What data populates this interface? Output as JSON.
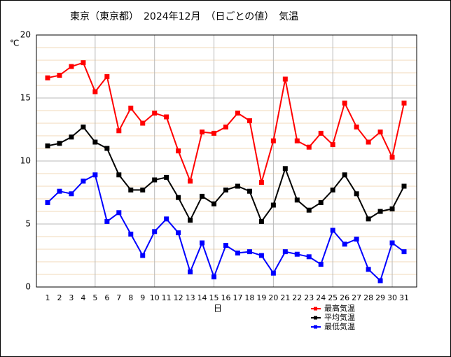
{
  "chart_data": {
    "type": "line",
    "title": "東京（東京都）　2024年12月　（日ごとの値）　気温",
    "y_label": "℃",
    "x_label": "日",
    "categories": [
      "1",
      "2",
      "3",
      "4",
      "5",
      "6",
      "7",
      "8",
      "9",
      "10",
      "11",
      "12",
      "13",
      "14",
      "15",
      "16",
      "17",
      "18",
      "19",
      "20",
      "21",
      "22",
      "23",
      "24",
      "25",
      "26",
      "27",
      "28",
      "29",
      "30",
      "31"
    ],
    "series": [
      {
        "name": "最高気温",
        "color": "#ff0000",
        "values": [
          16.6,
          16.8,
          17.5,
          17.8,
          15.5,
          16.7,
          12.4,
          14.2,
          13.0,
          13.8,
          13.5,
          10.8,
          8.4,
          12.3,
          12.2,
          12.7,
          13.8,
          13.2,
          8.3,
          11.6,
          16.5,
          11.6,
          11.1,
          12.2,
          11.3,
          14.6,
          12.7,
          11.5,
          12.3,
          10.3,
          14.6
        ]
      },
      {
        "name": "平均気温",
        "color": "#000000",
        "values": [
          11.2,
          11.4,
          11.9,
          12.7,
          11.5,
          11.0,
          8.9,
          7.7,
          7.7,
          8.5,
          8.7,
          7.1,
          5.3,
          7.2,
          6.6,
          7.7,
          8.0,
          7.6,
          5.2,
          6.5,
          9.4,
          6.9,
          6.1,
          6.7,
          7.7,
          8.9,
          7.4,
          5.4,
          6.0,
          6.2,
          8.0
        ]
      },
      {
        "name": "最低気温",
        "color": "#0000ff",
        "values": [
          6.7,
          7.6,
          7.4,
          8.4,
          8.9,
          5.2,
          5.9,
          4.2,
          2.5,
          4.4,
          5.4,
          4.3,
          1.2,
          3.5,
          0.8,
          3.3,
          2.7,
          2.8,
          2.5,
          1.1,
          2.8,
          2.6,
          2.4,
          1.8,
          4.5,
          3.4,
          3.8,
          1.4,
          0.5,
          3.5,
          2.8
        ]
      }
    ],
    "ylim": [
      0,
      20
    ],
    "yticks": [
      0,
      5,
      10,
      15,
      20
    ],
    "yminorticks": [
      1,
      2,
      3,
      4,
      6,
      7,
      8,
      9,
      11,
      12,
      13,
      14,
      16,
      17,
      18,
      19
    ],
    "grid": true
  }
}
